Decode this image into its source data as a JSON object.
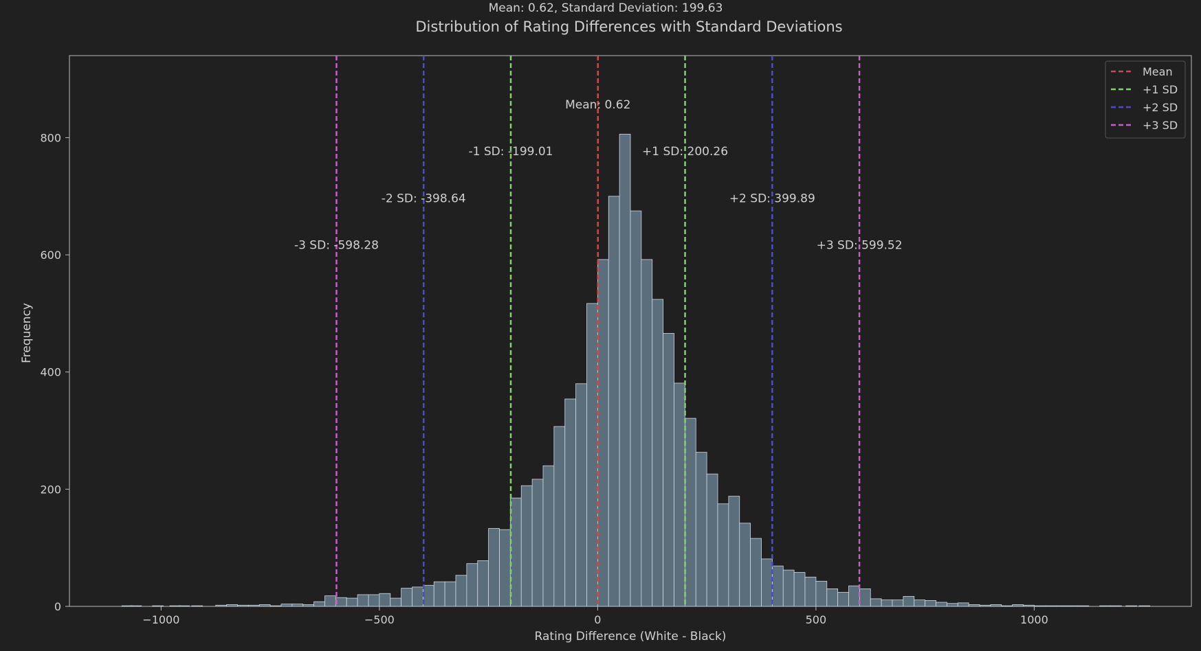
{
  "chart_data": {
    "type": "bar",
    "title": "Distribution of Rating Differences with Standard Deviations",
    "subtitle": "Mean: 0.62, Standard Deviation: 199.63",
    "xlabel": "Rating Difference (White - Black)",
    "ylabel": "Frequency",
    "xlim": [
      -1210,
      1360
    ],
    "ylim": [
      0,
      940
    ],
    "xticks": [
      -1000,
      -500,
      0,
      500,
      1000
    ],
    "xtick_labels": [
      "−1000",
      "−500",
      "0",
      "500",
      "1000"
    ],
    "yticks": [
      0,
      200,
      400,
      600,
      800
    ],
    "yticks_labels": [
      "0",
      "200",
      "400",
      "600",
      "800"
    ],
    "grid": false,
    "legend_position": "top-right",
    "bin_width": 25,
    "bins": [
      [
        -1090,
        1
      ],
      [
        -1070,
        1
      ],
      [
        -1050,
        0
      ],
      [
        -1020,
        1
      ],
      [
        -980,
        1
      ],
      [
        -960,
        1
      ],
      [
        -930,
        1
      ],
      [
        -900,
        0
      ],
      [
        -875,
        2
      ],
      [
        -850,
        3
      ],
      [
        -825,
        2
      ],
      [
        -800,
        2
      ],
      [
        -775,
        3
      ],
      [
        -750,
        1
      ],
      [
        -725,
        4
      ],
      [
        -700,
        4
      ],
      [
        -675,
        3
      ],
      [
        -650,
        8
      ],
      [
        -625,
        18
      ],
      [
        -600,
        15
      ],
      [
        -575,
        14
      ],
      [
        -550,
        20
      ],
      [
        -525,
        20
      ],
      [
        -500,
        22
      ],
      [
        -475,
        14
      ],
      [
        -450,
        31
      ],
      [
        -425,
        33
      ],
      [
        -400,
        36
      ],
      [
        -375,
        42
      ],
      [
        -350,
        42
      ],
      [
        -325,
        53
      ],
      [
        -300,
        73
      ],
      [
        -275,
        78
      ],
      [
        -250,
        133
      ],
      [
        -225,
        131
      ],
      [
        -200,
        185
      ],
      [
        -175,
        206
      ],
      [
        -150,
        217
      ],
      [
        -125,
        240
      ],
      [
        -100,
        307
      ],
      [
        -75,
        354
      ],
      [
        -50,
        380
      ],
      [
        -25,
        517
      ],
      [
        0,
        592
      ],
      [
        25,
        700
      ],
      [
        50,
        806
      ],
      [
        75,
        675
      ],
      [
        100,
        592
      ],
      [
        125,
        524
      ],
      [
        150,
        466
      ],
      [
        175,
        381
      ],
      [
        200,
        321
      ],
      [
        225,
        263
      ],
      [
        250,
        226
      ],
      [
        275,
        175
      ],
      [
        300,
        188
      ],
      [
        325,
        142
      ],
      [
        350,
        116
      ],
      [
        375,
        81
      ],
      [
        400,
        69
      ],
      [
        425,
        62
      ],
      [
        450,
        58
      ],
      [
        475,
        50
      ],
      [
        500,
        43
      ],
      [
        525,
        30
      ],
      [
        550,
        24
      ],
      [
        575,
        35
      ],
      [
        600,
        30
      ],
      [
        625,
        13
      ],
      [
        650,
        11
      ],
      [
        675,
        11
      ],
      [
        700,
        17
      ],
      [
        725,
        11
      ],
      [
        750,
        10
      ],
      [
        775,
        7
      ],
      [
        800,
        5
      ],
      [
        825,
        6
      ],
      [
        850,
        3
      ],
      [
        875,
        2
      ],
      [
        900,
        3
      ],
      [
        925,
        1
      ],
      [
        950,
        3
      ],
      [
        975,
        2
      ],
      [
        1000,
        1
      ],
      [
        1025,
        1
      ],
      [
        1050,
        1
      ],
      [
        1075,
        1
      ],
      [
        1100,
        1
      ],
      [
        1125,
        0
      ],
      [
        1150,
        1
      ],
      [
        1175,
        1
      ],
      [
        1210,
        1
      ],
      [
        1240,
        1
      ]
    ],
    "bar_color": "#5a6e7c",
    "bar_edge_color": "#cfd8df",
    "vlines": [
      {
        "x": 0.62,
        "color": "#c0504d",
        "label": "Mean: 0.62",
        "label_y": 850
      },
      {
        "x": -199.01,
        "color": "#7fd36b",
        "label": "-1 SD: -199.01",
        "label_y": 770
      },
      {
        "x": 200.26,
        "color": "#7fd36b",
        "label": "+1 SD: 200.26",
        "label_y": 770
      },
      {
        "x": -398.64,
        "color": "#4a4fc0",
        "label": "-2 SD: -398.64",
        "label_y": 690
      },
      {
        "x": 399.89,
        "color": "#4a4fc0",
        "label": "+2 SD: 399.89",
        "label_y": 690
      },
      {
        "x": -598.28,
        "color": "#c65fc4",
        "label": "-3 SD: -598.28",
        "label_y": 610
      },
      {
        "x": 599.52,
        "color": "#c65fc4",
        "label": "+3 SD: 599.52",
        "label_y": 610
      }
    ],
    "legend": [
      {
        "label": "Mean",
        "color": "#c0504d"
      },
      {
        "label": "+1 SD",
        "color": "#7fd36b"
      },
      {
        "label": "+2 SD",
        "color": "#4a4fc0"
      },
      {
        "label": "+3 SD",
        "color": "#c65fc4"
      }
    ]
  }
}
